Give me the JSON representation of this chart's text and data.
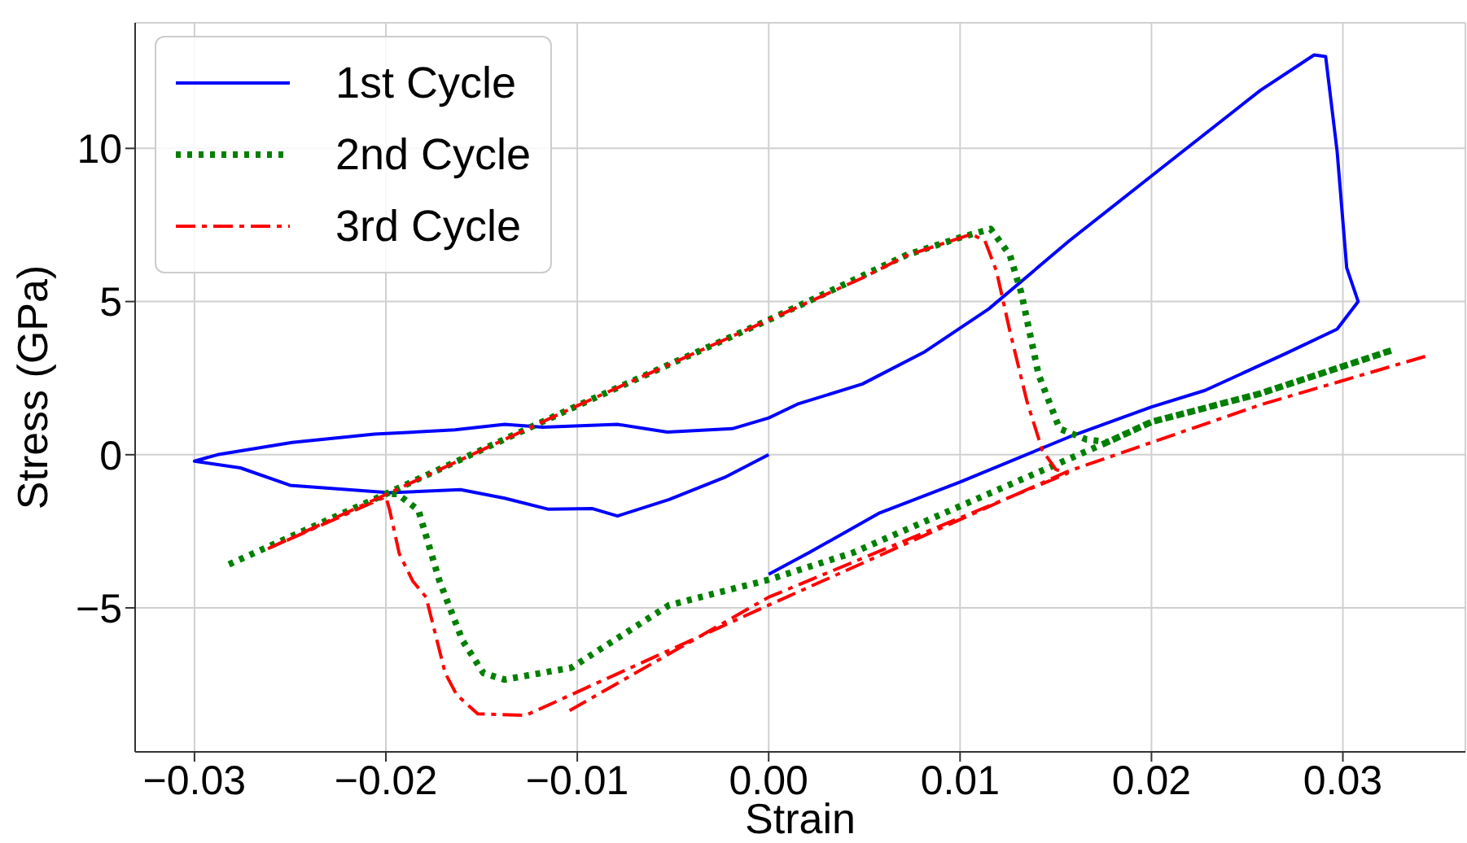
{
  "chart_data": {
    "type": "line",
    "xlabel": "Strain",
    "ylabel": "Stress (GPa)",
    "xlim": [
      -0.0331,
      0.0364
    ],
    "ylim": [
      -9.7,
      14.1
    ],
    "xticks": [
      {
        "value": -0.03,
        "label": "−0.03"
      },
      {
        "value": -0.02,
        "label": "−0.02"
      },
      {
        "value": -0.01,
        "label": "−0.01"
      },
      {
        "value": 0,
        "label": "0.00"
      },
      {
        "value": 0.01,
        "label": "0.01"
      },
      {
        "value": 0.02,
        "label": "0.02"
      },
      {
        "value": 0.03,
        "label": "0.03"
      }
    ],
    "yticks": [
      {
        "value": -5,
        "label": "−5"
      },
      0,
      5,
      10
    ],
    "grid": true,
    "legend": "top left",
    "marker": "none",
    "series": [
      {
        "name": "1st Cycle",
        "color": "#0000ff",
        "line_style": "solid",
        "x": [
          0,
          -0.0023,
          -0.0052,
          -0.0079,
          -0.0092,
          -0.0115,
          -0.0138,
          -0.0161,
          -0.0198,
          -0.025,
          -0.0276,
          -0.03,
          -0.0288,
          -0.0249,
          -0.0206,
          -0.0164,
          -0.0138,
          -0.0118,
          -0.0079,
          -0.0053,
          -0.0019,
          0,
          0.0015,
          0.0049,
          0.0081,
          0.0115,
          0.0157,
          0.02,
          0.0257,
          0.0285,
          0.0291,
          0.0297,
          0.0302,
          0.0308,
          0.0297,
          0.027,
          0.0228,
          0.02,
          0.0157,
          0.01,
          0.0058,
          0.0021,
          0
        ],
        "values": [
          0,
          -0.74,
          -1.46,
          -2.0,
          -1.76,
          -1.78,
          -1.42,
          -1.14,
          -1.24,
          -1.0,
          -0.43,
          -0.21,
          0,
          0.4,
          0.67,
          0.81,
          0.99,
          0.9,
          0.99,
          0.74,
          0.85,
          1.2,
          1.65,
          2.31,
          3.34,
          4.76,
          6.98,
          9.1,
          11.9,
          13.05,
          13.0,
          9.9,
          6.1,
          5.0,
          4.1,
          3.3,
          2.1,
          1.56,
          0.58,
          -0.89,
          -1.9,
          -3.2,
          -3.9
        ]
      },
      {
        "name": "2nd Cycle",
        "color": "#008000",
        "line_style": "dotted",
        "x": [
          -0.0282,
          -0.02,
          -0.01,
          0,
          0.003,
          0.0072,
          0.01,
          0.0116,
          0.0126,
          0.0132,
          0.0141,
          0.0152,
          0.0166,
          0.0177,
          0.02,
          0.0257,
          0.0326,
          0.0257,
          0.02,
          0.0177,
          0.0044,
          0,
          -0.0052,
          -0.0103,
          -0.0138,
          -0.0149,
          -0.016,
          -0.0172,
          -0.0183,
          -0.0194,
          -0.02
        ],
        "values": [
          -3.58,
          -1.28,
          1.6,
          4.4,
          5.28,
          6.52,
          7.09,
          7.37,
          6.52,
          5.28,
          2.62,
          0.85,
          0.5,
          0.41,
          1.07,
          2.0,
          3.42,
          2.0,
          1.07,
          0.41,
          -3.2,
          -4.08,
          -4.91,
          -6.95,
          -7.34,
          -7.13,
          -6.06,
          -4.12,
          -1.81,
          -1.28,
          -1.28
        ]
      },
      {
        "name": "3rd Cycle",
        "color": "#ff0000",
        "line_style": "dashdot",
        "x": [
          0.0343,
          0.0257,
          0.0156,
          0,
          -0.0127,
          -0.0152,
          -0.0163,
          -0.0169,
          -0.0179,
          -0.0186,
          -0.0193,
          -0.0198,
          -0.02,
          -0.0261,
          -0.02,
          -0.01,
          0,
          0.005,
          0.0072,
          0.0106,
          0.0113,
          0.0119,
          0.0126,
          0.0135,
          0.0143,
          0.015,
          0.0156,
          0,
          -0.0104
        ],
        "values": [
          3.21,
          1.63,
          -0.55,
          -4.91,
          -8.51,
          -8.46,
          -7.84,
          -7.13,
          -4.65,
          -4.12,
          -3.23,
          -1.81,
          -1.37,
          -3.05,
          -1.3,
          1.6,
          4.4,
          5.8,
          6.5,
          7.2,
          6.98,
          6.0,
          4.04,
          1.73,
          0.14,
          -0.48,
          -0.61,
          -4.65,
          -8.35
        ]
      }
    ]
  }
}
